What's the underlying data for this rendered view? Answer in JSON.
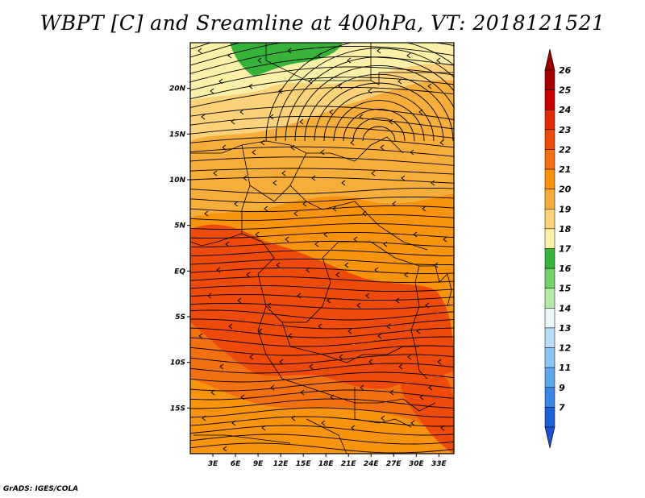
{
  "title": "WBPT [C] and Sreamline at 400hPa, VT: 2018121521",
  "credit": "GrADS: IGES/COLA",
  "map": {
    "lat_labels": [
      "20N",
      "15N",
      "10N",
      "5N",
      "EQ",
      "5S",
      "10S",
      "15S"
    ],
    "lat_values": [
      20,
      15,
      10,
      5,
      0,
      -5,
      -10,
      -15
    ],
    "lon_labels": [
      "3E",
      "6E",
      "9E",
      "12E",
      "15E",
      "18E",
      "21E",
      "24E",
      "27E",
      "30E",
      "33E"
    ],
    "lon_values": [
      3,
      6,
      9,
      12,
      15,
      18,
      21,
      24,
      27,
      30,
      33
    ],
    "lat_range": [
      -20,
      25
    ],
    "lon_range": [
      0,
      35
    ]
  },
  "colorbar": {
    "labels": [
      "26",
      "25",
      "24",
      "23",
      "22",
      "21",
      "20",
      "19",
      "18",
      "17",
      "16",
      "15",
      "14",
      "13",
      "12",
      "11",
      "9",
      "7"
    ],
    "colors": [
      "#a50000",
      "#c80000",
      "#e02a0a",
      "#ee4a0a",
      "#f37010",
      "#f7930d",
      "#f6ad3a",
      "#fbd27a",
      "#fbf0a8",
      "#37b33a",
      "#73d06a",
      "#b2eaa6",
      "#e8f8f8",
      "#b8dcf6",
      "#8cc4f0",
      "#5ea6ea",
      "#3a86e2",
      "#1e60d8"
    ],
    "arrow_top_color": "#9a0000",
    "arrow_bottom_color": "#1e52cc"
  },
  "colors": {
    "region_yellow": "#fbd27a",
    "region_lightorange": "#f6ad3a",
    "region_orange": "#f7930d",
    "region_darkorange": "#f37010",
    "region_red": "#ee4a0a",
    "region_green": "#37b33a"
  }
}
